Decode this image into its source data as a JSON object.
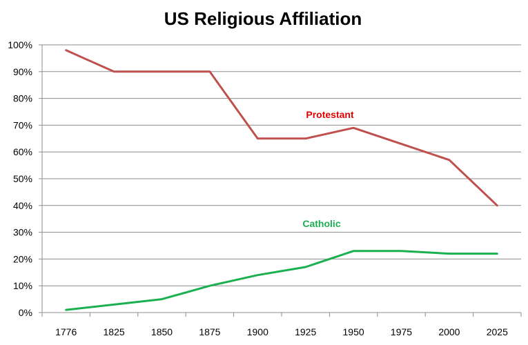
{
  "chart_data": {
    "type": "line",
    "title": "US Religious Affiliation",
    "xlabel": "",
    "ylabel": "",
    "categories": [
      "1776",
      "1825",
      "1850",
      "1875",
      "1900",
      "1925",
      "1950",
      "1975",
      "2000",
      "2025"
    ],
    "ylim": [
      0,
      100
    ],
    "yticks": [
      "0%",
      "10%",
      "20%",
      "30%",
      "40%",
      "50%",
      "60%",
      "70%",
      "80%",
      "90%",
      "100%"
    ],
    "grid": true,
    "series": [
      {
        "name": "Protestant",
        "color": "#c0504d",
        "label_color": "#e00000",
        "values": [
          98,
          90,
          90,
          90,
          65,
          65,
          69,
          63,
          57,
          40
        ]
      },
      {
        "name": "Catholic",
        "color": "#1aaf4f",
        "label_color": "#1aaf4f",
        "values": [
          1,
          3,
          5,
          10,
          14,
          17,
          23,
          23,
          22,
          22
        ]
      }
    ]
  }
}
